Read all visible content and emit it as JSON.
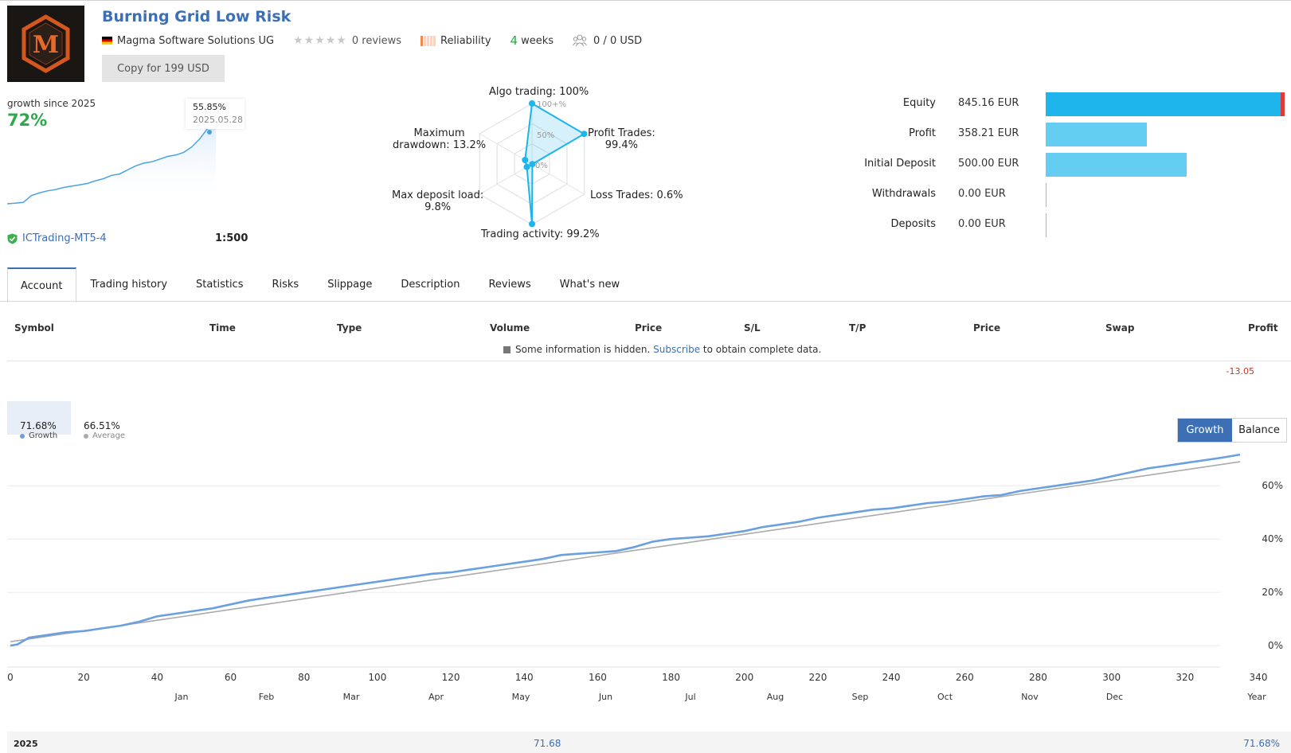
{
  "header": {
    "logo_letter": "M",
    "title": "Burning Grid Low Risk",
    "author": "Magma Software Solutions UG",
    "reviews": "0 reviews",
    "reliability": "Reliability",
    "weeks_num": "4",
    "weeks_label": "weeks",
    "subscribers": "0 / 0 USD",
    "copy_button": "Copy for 199 USD"
  },
  "growth_card": {
    "label": "growth since 2025",
    "value": "72%",
    "tooltip_value": "55.85%",
    "tooltip_date": "2025.05.28",
    "broker": "ICTrading-MT5-4",
    "leverage": "1:500"
  },
  "radar": {
    "algo": "Algo trading: 100%",
    "profit_trades_1": "Profit Trades:",
    "profit_trades_2": "99.4%",
    "loss_trades": "Loss Trades: 0.6%",
    "activity": "Trading activity: 99.2%",
    "deposit_load_1": "Max deposit load:",
    "deposit_load_2": "9.8%",
    "drawdown_1": "Maximum",
    "drawdown_2": "drawdown: 13.2%",
    "scale_100": "100+%",
    "scale_50": "50%",
    "scale_0": "0%",
    "values": {
      "algo": 100,
      "profit_trades": 99.4,
      "loss_trades": 0.6,
      "activity": 99.2,
      "deposit_load": 9.8,
      "drawdown": 13.2
    }
  },
  "equity": {
    "rows": [
      {
        "label": "Equity",
        "value": "845.16 EUR",
        "amount": 845.16
      },
      {
        "label": "Profit",
        "value": "358.21 EUR",
        "amount": 358.21
      },
      {
        "label": "Initial Deposit",
        "value": "500.00 EUR",
        "amount": 500.0
      },
      {
        "label": "Withdrawals",
        "value": "0.00 EUR",
        "amount": 0
      },
      {
        "label": "Deposits",
        "value": "0.00 EUR",
        "amount": 0
      }
    ],
    "colors": {
      "equity": "#1eb4ec",
      "other": "#63cdf2",
      "marker": "#e03b3b"
    }
  },
  "tabs": [
    "Account",
    "Trading history",
    "Statistics",
    "Risks",
    "Slippage",
    "Description",
    "Reviews",
    "What's new"
  ],
  "table": {
    "headers": [
      "Symbol",
      "Time",
      "Type",
      "Volume",
      "Price",
      "S/L",
      "T/P",
      "Price",
      "Swap",
      "Profit"
    ],
    "hidden_pre": "Some information is hidden.",
    "hidden_link": "Subscribe",
    "hidden_post": "to obtain complete data.",
    "profit_total": "-13.05"
  },
  "chart_legend": {
    "growth_value": "71.68%",
    "growth_label": "Growth",
    "average_value": "66.51%",
    "average_label": "Average",
    "toggle_growth": "Growth",
    "toggle_balance": "Balance"
  },
  "chart_data": {
    "type": "line",
    "x_ticks": [
      "0",
      "20",
      "40",
      "60",
      "80",
      "100",
      "120",
      "140",
      "160",
      "180",
      "200",
      "220",
      "240",
      "260",
      "280",
      "300",
      "320",
      "340"
    ],
    "months": [
      "Jan",
      "Feb",
      "Mar",
      "Apr",
      "May",
      "Jun",
      "Jul",
      "Aug",
      "Sep",
      "Oct",
      "Nov",
      "Dec",
      "Year"
    ],
    "y_ticks": [
      "0%",
      "20%",
      "40%",
      "60%"
    ],
    "xlim": [
      0,
      340
    ],
    "ylim": [
      -8,
      72
    ],
    "grid": true,
    "series": [
      {
        "name": "Growth",
        "color": "#6a9fe0",
        "x": [
          0,
          2,
          5,
          10,
          15,
          20,
          25,
          30,
          35,
          40,
          45,
          50,
          55,
          60,
          65,
          70,
          75,
          80,
          85,
          90,
          95,
          100,
          105,
          110,
          115,
          120,
          125,
          130,
          135,
          140,
          145,
          150,
          155,
          160,
          165,
          170,
          175,
          180,
          185,
          190,
          195,
          200,
          205,
          210,
          215,
          220,
          225,
          230,
          235,
          240,
          245,
          250,
          255,
          260,
          265,
          270,
          275,
          280,
          285,
          290,
          295,
          300,
          305,
          310,
          315,
          320,
          325,
          330,
          335
        ],
        "y": [
          0,
          0.5,
          3,
          4,
          5,
          5.5,
          6.5,
          7.5,
          9,
          11,
          12,
          13,
          14,
          15.5,
          17,
          18,
          19,
          20,
          21,
          22,
          23,
          24,
          25,
          26,
          27,
          27.5,
          28.5,
          29.5,
          30.5,
          31.5,
          32.5,
          34,
          34.5,
          35,
          35.5,
          37,
          39,
          40,
          40.5,
          41,
          42,
          43,
          44.5,
          45.5,
          46.5,
          48,
          49,
          50,
          51,
          51.5,
          52.5,
          53.5,
          54,
          55,
          56,
          56.5,
          58,
          59,
          60,
          61,
          62,
          63.5,
          65,
          66.5,
          67.5,
          68.5,
          69.5,
          70.5,
          71.68
        ]
      },
      {
        "name": "Average",
        "color": "#aaaaaa",
        "x": [
          0,
          335
        ],
        "y": [
          1.5,
          69
        ]
      }
    ]
  },
  "mini_chart": {
    "type": "line",
    "y": [
      0,
      0.5,
      1,
      6,
      8,
      9.5,
      10.5,
      12,
      13,
      14,
      15,
      17,
      18.5,
      21,
      22,
      25,
      28,
      30,
      31,
      33,
      35,
      36,
      38,
      42,
      48,
      55.85,
      60
    ]
  },
  "footer": {
    "year": "2025",
    "may_value": "71.68",
    "year_total": "71.68%"
  }
}
